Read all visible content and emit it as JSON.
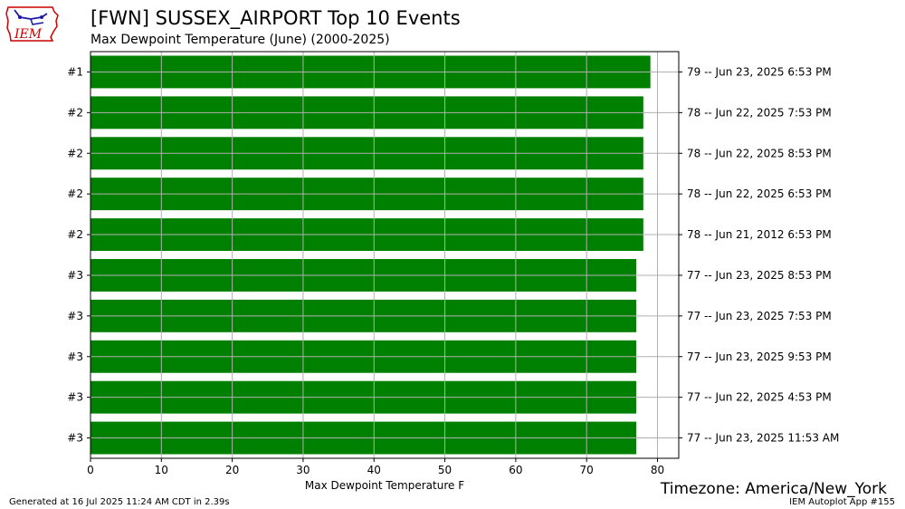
{
  "header": {
    "title": "[FWN] SUSSEX_AIRPORT Top 10 Events",
    "subtitle": "Max Dewpoint Temperature  (June) (2000-2025)",
    "logo_text": "IEM"
  },
  "footer": {
    "timezone": "Timezone: America/New_York",
    "generated": "Generated at 16 Jul 2025 11:24 AM CDT in 2.39s",
    "app": "IEM Autoplot App #155"
  },
  "colors": {
    "bar": "#008000",
    "grid": "#b0b0b0",
    "logo_red": "#cc0000",
    "logo_blue": "#1a1aa6"
  },
  "chart_data": {
    "type": "bar",
    "orientation": "horizontal",
    "xlabel": "Max Dewpoint Temperature F",
    "xlim": [
      0,
      83
    ],
    "xticks": [
      0,
      10,
      20,
      30,
      40,
      50,
      60,
      70,
      80
    ],
    "grid": true,
    "rank_labels": [
      "#1",
      "#2",
      "#2",
      "#2",
      "#2",
      "#3",
      "#3",
      "#3",
      "#3",
      "#3"
    ],
    "values": [
      79,
      78,
      78,
      78,
      78,
      77,
      77,
      77,
      77,
      77
    ],
    "right_labels": [
      "79 -- Jun 23, 2025 6:53 PM",
      "78 -- Jun 22, 2025 7:53 PM",
      "78 -- Jun 22, 2025 8:53 PM",
      "78 -- Jun 22, 2025 6:53 PM",
      "78 -- Jun 21, 2012 6:53 PM",
      "77 -- Jun 23, 2025 8:53 PM",
      "77 -- Jun 23, 2025 7:53 PM",
      "77 -- Jun 23, 2025 9:53 PM",
      "77 -- Jun 22, 2025 4:53 PM",
      "77 -- Jun 23, 2025 11:53 AM"
    ]
  }
}
